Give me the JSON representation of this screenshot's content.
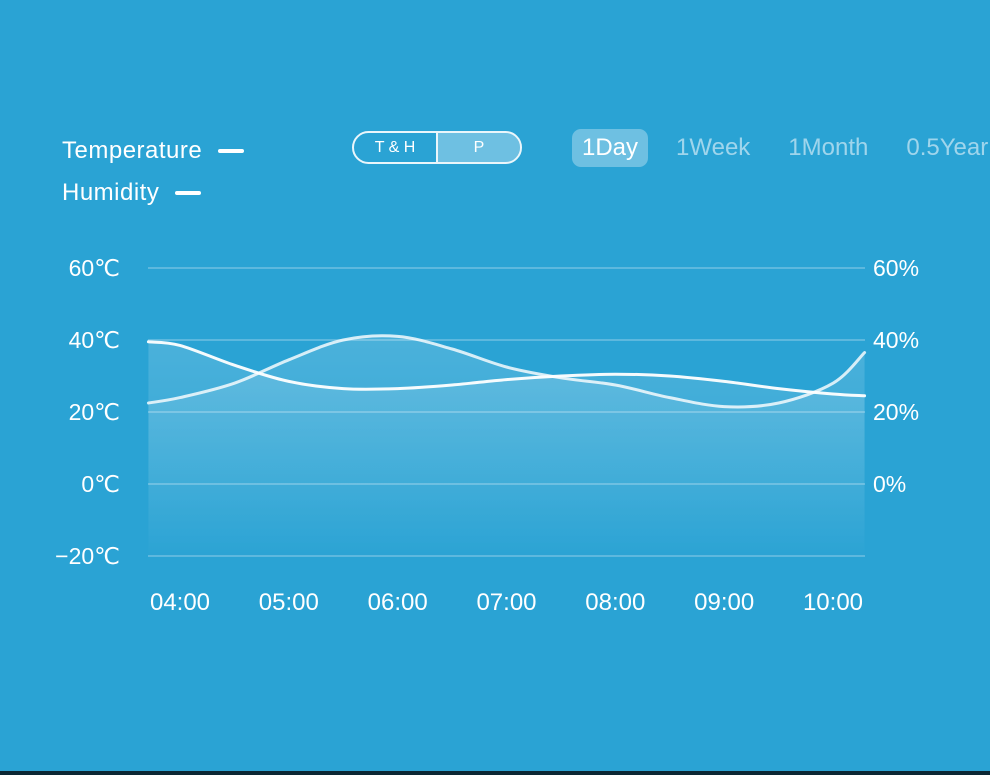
{
  "colors": {
    "background": "#2AA3D4",
    "text": "#FFFFFF",
    "muted": "rgba(255,255,255,0.55)",
    "grid": "rgba(255,255,255,0.32)",
    "line": "#FFFFFF",
    "area_top": "rgba(255,255,255,0.16)",
    "bottom_bar": "#0C2733"
  },
  "legend": {
    "items": [
      {
        "label": "Temperature"
      },
      {
        "label": "Humidity"
      }
    ]
  },
  "toggle": {
    "left_label": "T & H",
    "right_label": "P"
  },
  "range_tabs": {
    "items": [
      {
        "label": "1Day",
        "selected": true
      },
      {
        "label": "1Week",
        "selected": false
      },
      {
        "label": "1Month",
        "selected": false
      },
      {
        "label": "0.5Year",
        "selected": false
      }
    ]
  },
  "chart_data": {
    "type": "line",
    "title": "",
    "x_ticks": [
      "04:00",
      "05:00",
      "06:00",
      "07:00",
      "08:00",
      "09:00",
      "10:00"
    ],
    "x_tick_hours": [
      4,
      5,
      6,
      7,
      8,
      9,
      10
    ],
    "y_axis_left": {
      "tick_labels": [
        "60℃",
        "40℃",
        "20℃",
        "0℃",
        "−20℃"
      ],
      "tick_values": [
        60,
        40,
        20,
        0,
        -20
      ],
      "ylim": [
        -20,
        60
      ]
    },
    "y_axis_right": {
      "tick_labels": [
        "60%",
        "40%",
        "20%",
        "0%"
      ],
      "tick_values": [
        60,
        40,
        20,
        0
      ],
      "ylim": [
        0,
        60
      ]
    },
    "grid": true,
    "legend_position": "top-left",
    "series": [
      {
        "name": "Temperature",
        "unit": "℃",
        "x": [
          3.71,
          4,
          4.5,
          5,
          5.5,
          6,
          6.5,
          7,
          7.5,
          8,
          8.5,
          9,
          9.5,
          10,
          10.29
        ],
        "values": [
          39.5,
          38.5,
          33,
          28.5,
          26.5,
          26.5,
          27.5,
          29,
          30,
          30.5,
          30,
          28.5,
          26.5,
          25,
          24.5
        ]
      },
      {
        "name": "Humidity",
        "unit": "%",
        "x": [
          3.71,
          4,
          4.5,
          5,
          5.5,
          6,
          6.5,
          7,
          7.5,
          8,
          8.5,
          9,
          9.5,
          10,
          10.29
        ],
        "values": [
          22.5,
          24,
          28,
          34.5,
          40,
          41,
          37.5,
          32.5,
          29.5,
          27.5,
          24,
          21.5,
          22.5,
          28,
          36.5
        ]
      }
    ]
  }
}
